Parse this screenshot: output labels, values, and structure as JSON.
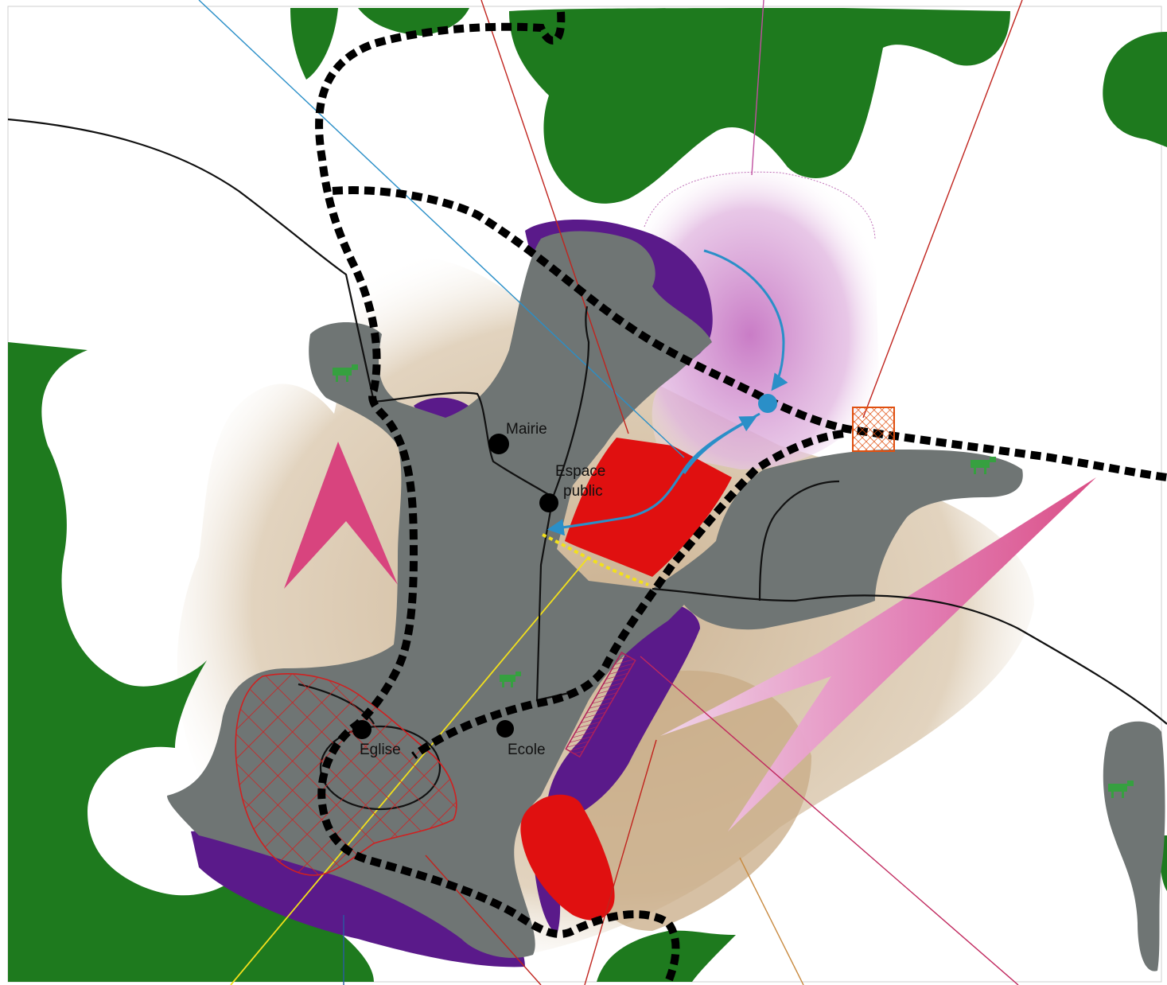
{
  "labels": {
    "mairie": "Mairie",
    "espace_line1": "Espace",
    "espace_line2": "public",
    "eglise": "Eglise",
    "ecole": "Ecole"
  },
  "colors": {
    "woodland": "#1e7a1e",
    "built_area": "#6f7574",
    "extension": "#5a1a8a",
    "project_red": "#e01010",
    "agricultural": "#c8ad88",
    "arrow_pink": "#d8447e",
    "pathway": "#000000",
    "connection_blue": "#2a8fc8",
    "heritage_hatch": "#d02020",
    "frontage_yellow": "#f2e01c"
  },
  "icons": [
    "cow-icon",
    "blue-point-icon",
    "hatched-square-icon"
  ]
}
